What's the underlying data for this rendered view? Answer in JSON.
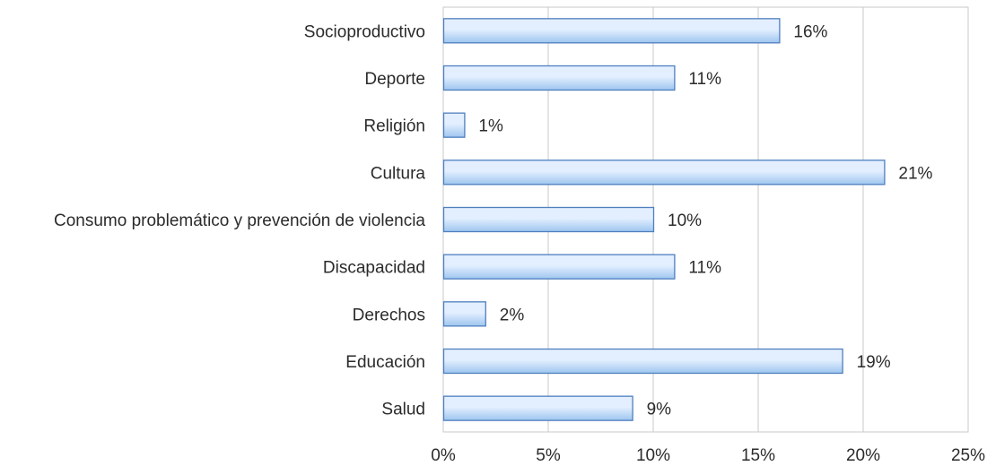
{
  "chart_data": {
    "type": "bar",
    "orientation": "horizontal",
    "categories": [
      "Socioproductivo",
      "Deporte",
      "Religión",
      "Cultura",
      "Consumo problemático y prevención de violencia",
      "Discapacidad",
      "Derechos",
      "Educación",
      "Salud"
    ],
    "values": [
      16,
      11,
      1,
      21,
      10,
      11,
      2,
      19,
      9
    ],
    "value_labels": [
      "16%",
      "11%",
      "1%",
      "21%",
      "10%",
      "11%",
      "2%",
      "19%",
      "9%"
    ],
    "xlim": [
      0,
      25
    ],
    "xticks": [
      0,
      5,
      10,
      15,
      20,
      25
    ],
    "xtick_labels": [
      "0%",
      "5%",
      "10%",
      "15%",
      "20%",
      "25%"
    ],
    "title": "",
    "xlabel": "",
    "ylabel": "",
    "grid": "vertical",
    "legend": "none",
    "colors": {
      "bar_fill_light": "#e3efff",
      "bar_fill_dark": "#9ec5ef",
      "bar_stroke": "#4f7fbf",
      "grid": "#c8c8c8",
      "text": "#2b2b2b"
    }
  }
}
